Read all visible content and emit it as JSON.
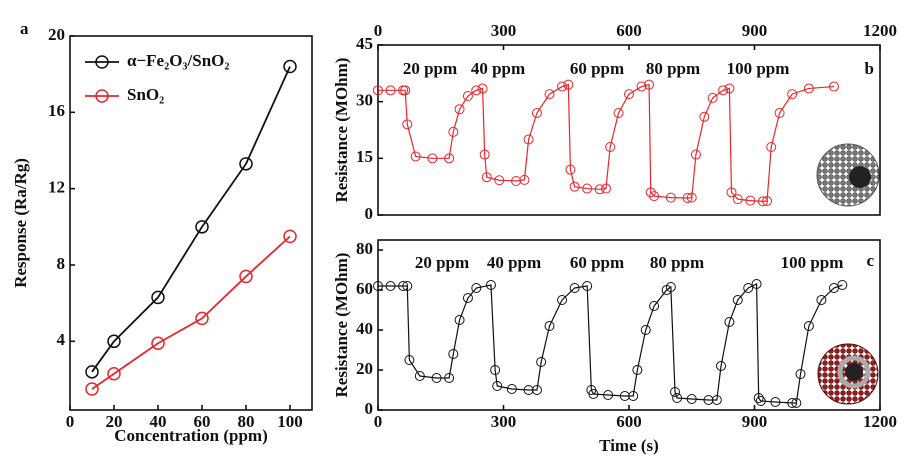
{
  "chart_data": [
    {
      "type": "line",
      "panel": "a",
      "xlabel": "Concentration (ppm)",
      "ylabel": "Response (Ra/Rg)",
      "x": [
        10,
        20,
        40,
        60,
        80,
        100
      ],
      "series": [
        {
          "name": "α−Fe₂O₃/SnO₂",
          "color": "#111111",
          "values": [
            2.4,
            4.0,
            6.3,
            10.0,
            13.3,
            18.4
          ]
        },
        {
          "name": "SnO₂",
          "color": "#e8262b",
          "values": [
            1.5,
            2.3,
            3.9,
            5.2,
            7.4,
            9.5
          ]
        }
      ],
      "xlim": [
        0,
        110
      ],
      "xticks": [
        0,
        20,
        40,
        60,
        80,
        100
      ],
      "ylim": [
        0.4,
        20
      ],
      "yticks": [
        4,
        8,
        12,
        16,
        20
      ]
    },
    {
      "type": "line",
      "panel": "b",
      "ylabel": "Resistance (MOhm)",
      "x": [
        0,
        30,
        60,
        65,
        70,
        90,
        130,
        170,
        180,
        195,
        215,
        235,
        250,
        255,
        260,
        290,
        330,
        350,
        360,
        380,
        410,
        440,
        455,
        460,
        470,
        500,
        530,
        545,
        555,
        575,
        600,
        630,
        648,
        652,
        660,
        700,
        740,
        750,
        760,
        780,
        800,
        825,
        840,
        845,
        860,
        890,
        920,
        930,
        940,
        960,
        990,
        1030,
        1090
      ],
      "series": [
        {
          "color": "#e8262b",
          "values": [
            33,
            33,
            33,
            33,
            24,
            15.5,
            15,
            15,
            22,
            28,
            31.5,
            33,
            33.5,
            16,
            10,
            9.2,
            9,
            9.3,
            20,
            27,
            32,
            34,
            34.5,
            12,
            7.5,
            7,
            6.8,
            7,
            18,
            27,
            32,
            34,
            34.5,
            6,
            5,
            4.6,
            4.5,
            4.6,
            16,
            26,
            31,
            33,
            33.5,
            6,
            4.2,
            3.8,
            3.6,
            3.7,
            18,
            27,
            32,
            33.5,
            34
          ]
        }
      ],
      "annotations": [
        "20 ppm",
        "40 ppm",
        "60 ppm",
        "80 ppm",
        "100 ppm"
      ],
      "xlim": [
        0,
        1200
      ],
      "xticks": [
        0,
        300,
        600,
        900,
        1200
      ],
      "ylim": [
        0,
        45
      ],
      "yticks": [
        0,
        15,
        30,
        45
      ]
    },
    {
      "type": "line",
      "panel": "c",
      "xlabel": "Time (s)",
      "ylabel": "Resistance (MOhm)",
      "x": [
        0,
        30,
        60,
        70,
        75,
        100,
        140,
        170,
        180,
        195,
        215,
        235,
        270,
        280,
        285,
        320,
        360,
        380,
        390,
        410,
        440,
        470,
        500,
        510,
        515,
        550,
        590,
        610,
        620,
        640,
        660,
        690,
        700,
        710,
        715,
        750,
        790,
        810,
        820,
        840,
        860,
        885,
        905,
        910,
        915,
        950,
        990,
        1000,
        1010,
        1030,
        1060,
        1090,
        1110
      ],
      "series": [
        {
          "color": "#111111",
          "values": [
            62,
            62,
            62,
            62,
            25,
            17,
            16,
            16,
            28,
            45,
            56,
            61,
            62.5,
            20,
            12,
            10.5,
            10,
            10,
            24,
            42,
            55,
            61,
            62,
            10,
            8,
            7.5,
            7,
            7,
            20,
            40,
            52,
            60,
            61.5,
            9,
            6,
            5.5,
            5,
            5,
            22,
            44,
            55,
            61,
            63,
            6,
            4.5,
            4,
            3.5,
            3.5,
            18,
            42,
            55,
            61,
            62.5
          ]
        }
      ],
      "annotations": [
        "20 ppm",
        "40 ppm",
        "60 ppm",
        "80 ppm",
        "100 ppm"
      ],
      "xlim": [
        0,
        1200
      ],
      "xticks": [
        0,
        300,
        600,
        900,
        1200
      ],
      "ylim": [
        0,
        85
      ],
      "yticks": [
        0,
        20,
        40,
        60,
        80
      ]
    }
  ]
}
